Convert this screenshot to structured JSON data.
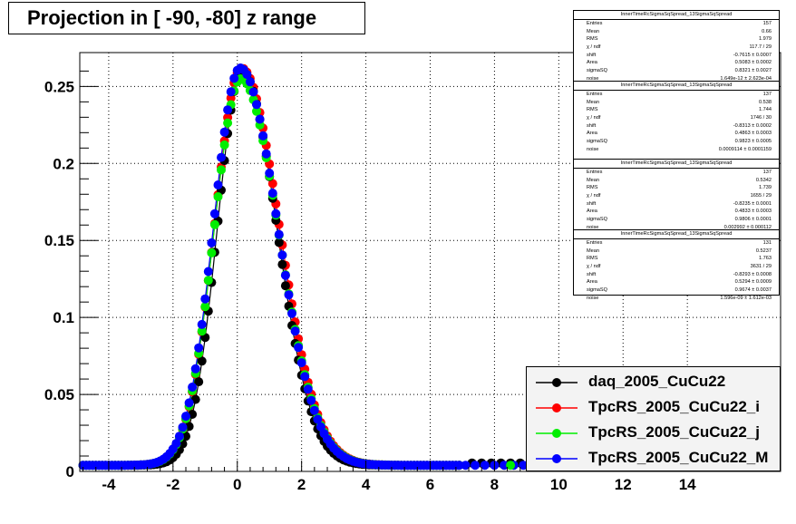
{
  "title": "Projection in [ -90, -80] z range",
  "chart_data": {
    "type": "scatter",
    "xlim": [
      -4.9,
      16.9
    ],
    "ylim": [
      0,
      0.272
    ],
    "x_ticks": [
      "-4",
      "-2",
      "0",
      "2",
      "4",
      "6",
      "8",
      "10",
      "12",
      "14"
    ],
    "y_ticks": [
      "0",
      "0.05",
      "0.1",
      "0.15",
      "0.2",
      "0.25"
    ],
    "grid": true,
    "legend_position": "bottom-right",
    "series": [
      {
        "name": "daq_2005_CuCu22",
        "color": "#000000",
        "fit": {
          "shift": -0.7615,
          "area": 0.5083,
          "sigmaSQ": 0.8321,
          "noise": 0.0
        }
      },
      {
        "name": "TpcRS_2005_CuCu22_i",
        "color": "#ff0000",
        "fit": {
          "shift": -0.8313,
          "area": 0.4863,
          "sigmaSQ": 0.9823,
          "noise": 0.0009114
        }
      },
      {
        "name": "TpcRS_2005_CuCu22_j",
        "color": "#00ee00",
        "fit": {
          "shift": -0.8235,
          "area": 0.4833,
          "sigmaSQ": 0.9806,
          "noise": 0.002992
        }
      },
      {
        "name": "TpcRS_2005_CuCu22_M",
        "color": "#0000ff",
        "fit": {
          "shift": -0.8293,
          "area": 0.5294,
          "sigmaSQ": 0.9674,
          "noise": 0.0
        }
      }
    ]
  },
  "stats": [
    {
      "title": "InnerTimeRcSigmaSqSpread_13SigmaSqSpread",
      "rows": [
        {
          "label": "Entries",
          "value": "157"
        },
        {
          "label": "Mean",
          "value": "0.66"
        },
        {
          "label": "RMS",
          "value": "1.979"
        },
        {
          "label": "χ  / ndf",
          "value": "117.7 / 29"
        },
        {
          "label": "shift",
          "value": "-0.7615 ± 0.0007"
        },
        {
          "label": "Area",
          "value": "0.5083 ± 0.0002"
        },
        {
          "label": "sigmaSQ",
          "value": "0.8321 ± 0.0027"
        },
        {
          "label": "noise",
          "value": "1.649e-12 ± 2.623e-04"
        }
      ]
    },
    {
      "title": "InnerTimeRcSigmaSqSpread_13SigmaSqSpread",
      "rows": [
        {
          "label": "Entries",
          "value": "137"
        },
        {
          "label": "Mean",
          "value": "0.538"
        },
        {
          "label": "RMS",
          "value": "1.744"
        },
        {
          "label": "χ  / ndf",
          "value": "1746 / 30"
        },
        {
          "label": "shift",
          "value": "-0.8313 ± 0.0002"
        },
        {
          "label": "Area",
          "value": "0.4863 ± 0.0003"
        },
        {
          "label": "sigmaSQ",
          "value": "0.9823 ± 0.0005"
        },
        {
          "label": "noise",
          "value": "0.0009114 ± 0.0001159"
        }
      ]
    },
    {
      "title": "InnerTimeRcSigmaSqSpread_13SigmaSqSpread",
      "rows": [
        {
          "label": "Entries",
          "value": "137"
        },
        {
          "label": "Mean",
          "value": "0.5342"
        },
        {
          "label": "RMS",
          "value": "1.739"
        },
        {
          "label": "χ  / ndf",
          "value": "1655 / 29"
        },
        {
          "label": "shift",
          "value": "-0.8235 ± 0.0001"
        },
        {
          "label": "Area",
          "value": "0.4833 ± 0.0003"
        },
        {
          "label": "sigmaSQ",
          "value": "0.9806 ± 0.0001"
        },
        {
          "label": "noise",
          "value": "0.002992 ± 0.000112"
        }
      ]
    },
    {
      "title": "InnerTimeRcSigmaSqSpread_13SigmaSqSpread",
      "rows": [
        {
          "label": "Entries",
          "value": "131"
        },
        {
          "label": "Mean",
          "value": "0.5237"
        },
        {
          "label": "RMS",
          "value": "1.763"
        },
        {
          "label": "χ  / ndf",
          "value": "3631 / 29"
        },
        {
          "label": "shift",
          "value": "-0.8293 ± 0.0008"
        },
        {
          "label": "Area",
          "value": "0.5294 ± 0.0009"
        },
        {
          "label": "sigmaSQ",
          "value": "0.9674 ± 0.0037"
        },
        {
          "label": "noise",
          "value": "1.596e-09 ± 1.612e-03"
        }
      ]
    }
  ]
}
